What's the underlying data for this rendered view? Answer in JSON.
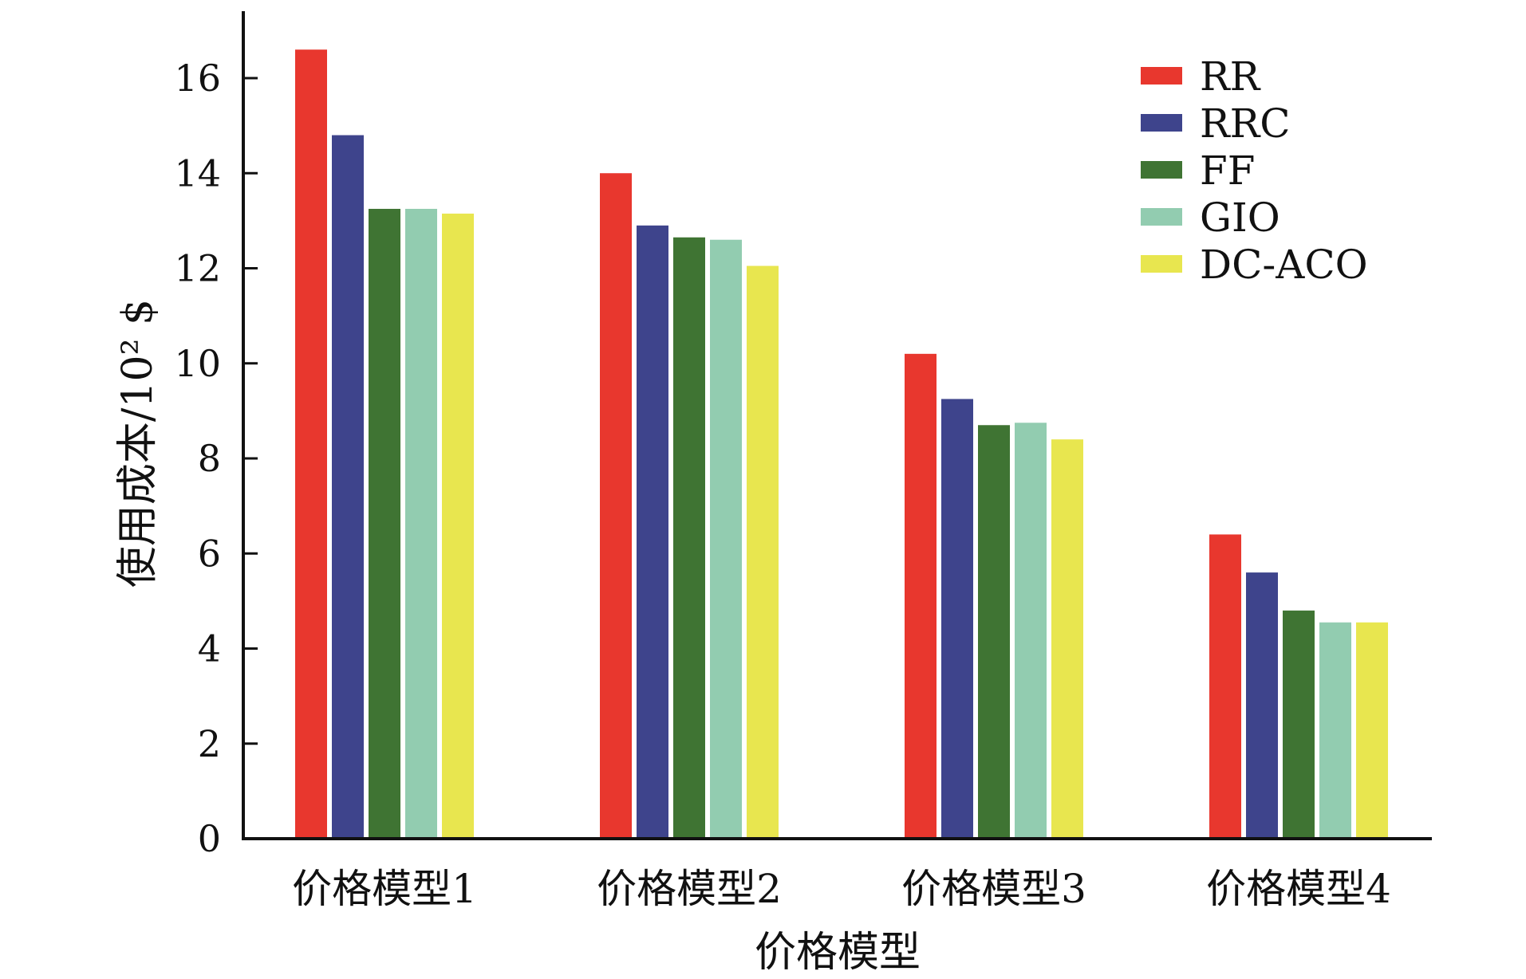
{
  "chart_data": {
    "type": "bar",
    "title": "",
    "xlabel": "价格模型",
    "ylabel": "使用成本/10² $",
    "categories": [
      "价格模型1",
      "价格模型2",
      "价格模型3",
      "价格模型4"
    ],
    "ylim": [
      0,
      17
    ],
    "yticks": [
      0,
      2,
      4,
      6,
      8,
      10,
      12,
      14,
      16
    ],
    "grid": false,
    "legend_position": "top-right",
    "series": [
      {
        "name": "RR",
        "color": "#e8372e",
        "values": [
          16.6,
          14.0,
          10.2,
          6.4
        ]
      },
      {
        "name": "RRC",
        "color": "#3e448c",
        "values": [
          14.8,
          12.9,
          9.25,
          5.6
        ]
      },
      {
        "name": "FF",
        "color": "#3f7433",
        "values": [
          13.25,
          12.65,
          8.7,
          4.8
        ]
      },
      {
        "name": "GIO",
        "color": "#92ccb0",
        "values": [
          13.25,
          12.6,
          8.75,
          4.55
        ]
      },
      {
        "name": "DC-ACO",
        "color": "#e8e64f",
        "values": [
          13.15,
          12.05,
          8.4,
          4.55
        ]
      }
    ]
  }
}
